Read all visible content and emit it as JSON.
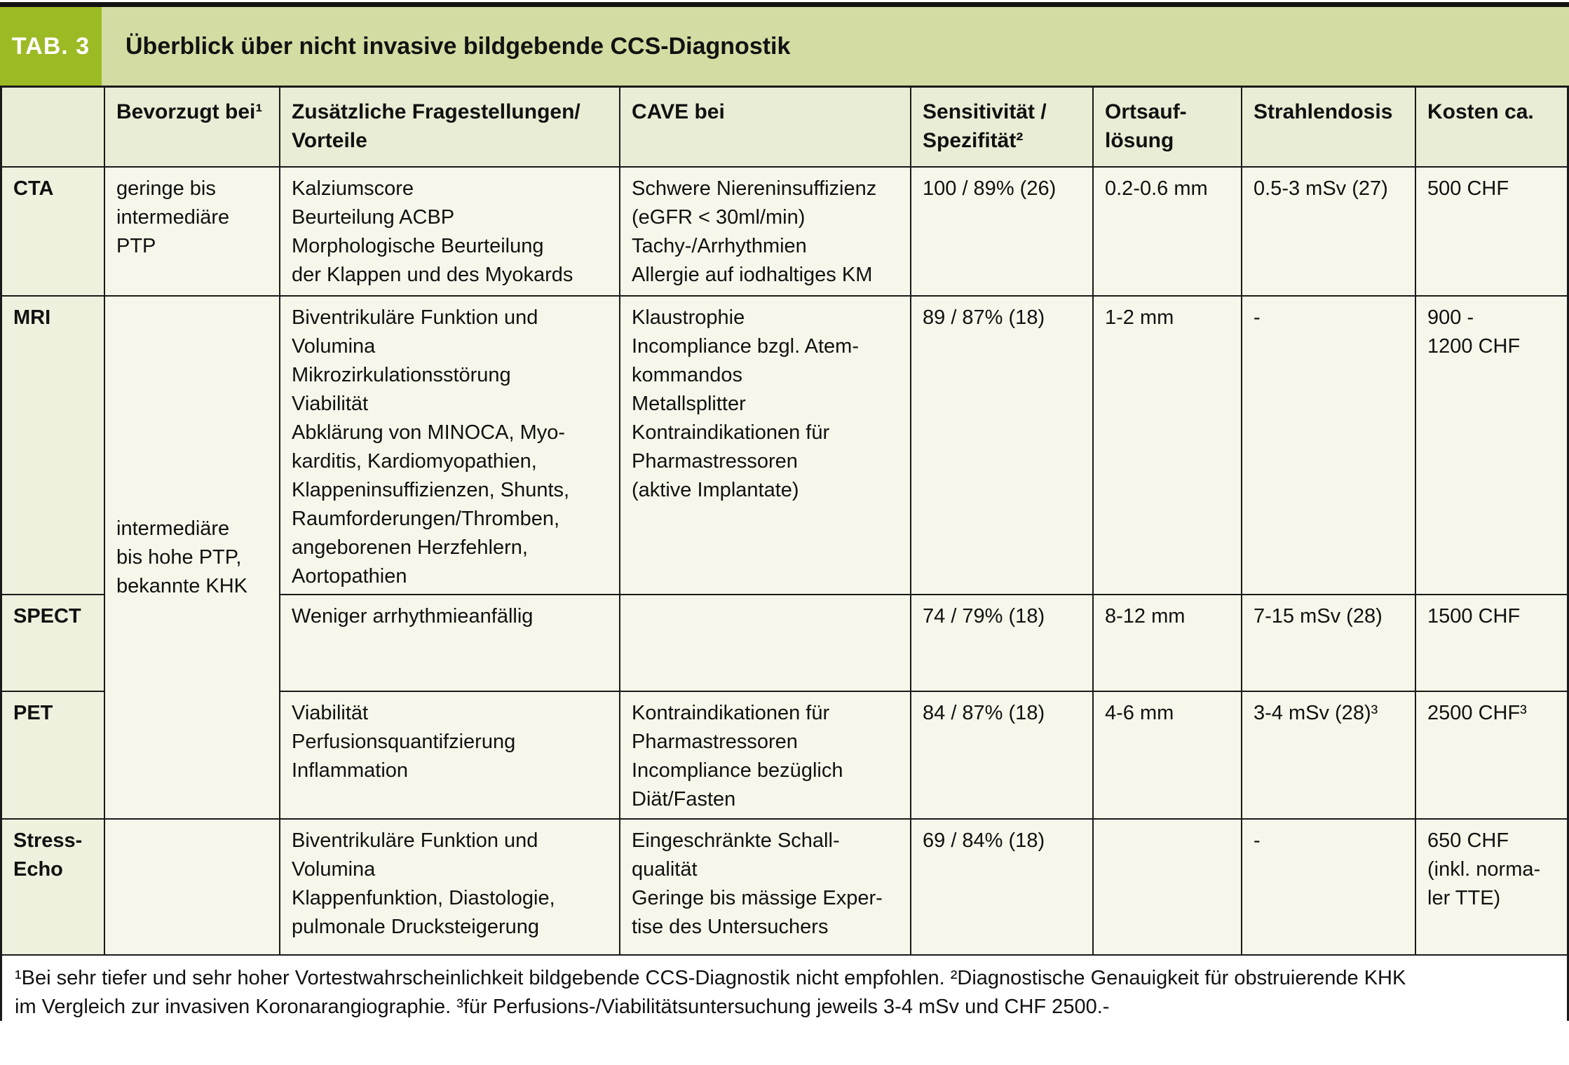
{
  "badge": "TAB. 3",
  "title": "Überblick über nicht invasive bildgebende CCS-Diagnostik",
  "headers": {
    "modality": "",
    "bevorzugt": "Bevorzugt bei¹",
    "zusatz": "Zusätzliche Fragestellungen/\nVorteile",
    "cave": "CAVE bei",
    "sens": "Sensitivität /\nSpezifität²",
    "orts": "Ortsauf-\nlösung",
    "dosis": "Strahlendosis",
    "kosten": "Kosten ca."
  },
  "merged_bevorzugt": "intermediäre\nbis hohe PTP,\nbekannte KHK",
  "rows": {
    "cta": {
      "label": "CTA",
      "bevorzugt": "geringe bis\nintermediäre\nPTP",
      "zusatz": "Kalziumscore\nBeurteilung ACBP\nMorphologische Beurteilung\nder Klappen und des Myokards",
      "cave": "Schwere Niereninsuffizienz\n(eGFR < 30ml/min)\nTachy-/Arrhythmien\nAllergie auf iodhaltiges KM",
      "sens": "100 / 89% (26)",
      "orts": "0.2-0.6 mm",
      "dosis": "0.5-3 mSv (27)",
      "kosten": "500 CHF"
    },
    "mri": {
      "label": "MRI",
      "zusatz": "Biventrikuläre Funktion und\nVolumina\nMikrozirkulationsstörung\nViabilität\nAbklärung von MINOCA, Myo-\nkarditis, Kardiomyopathien,\nKlappeninsuffizienzen, Shunts,\nRaumforderungen/Thromben,\nangeborenen Herzfehlern,\nAortopathien",
      "cave": "Klaustrophie\nIncompliance bzgl. Atem-\nkommandos\nMetallsplitter\nKontraindikationen für\nPharmastressoren\n(aktive Implantate)",
      "sens": "89 / 87% (18)",
      "orts": "1-2 mm",
      "dosis": "-",
      "kosten": "900 -\n1200 CHF"
    },
    "spect": {
      "label": "SPECT",
      "zusatz": "Weniger arrhythmieanfällig",
      "cave": "",
      "sens": "74 / 79% (18)",
      "orts": "8-12 mm",
      "dosis": "7-15 mSv (28)",
      "kosten": "1500 CHF"
    },
    "pet": {
      "label": "PET",
      "zusatz": "Viabilität\nPerfusionsquantifzierung\nInflammation",
      "cave": "Kontraindikationen für\nPharmastressoren\nIncompliance bezüglich\nDiät/Fasten",
      "sens": "84 / 87% (18)",
      "orts": "4-6 mm",
      "dosis": "3-4 mSv (28)³",
      "kosten": "2500 CHF³"
    },
    "stress_echo": {
      "label": "Stress-\nEcho",
      "bevorzugt": "",
      "zusatz": "Biventrikuläre Funktion und\nVolumina\nKlappenfunktion, Diastologie,\npulmonale Drucksteigerung",
      "cave": "Eingeschränkte Schall-\nqualität\nGeringe bis mässige Exper-\ntise des Untersuchers",
      "sens": "69 / 84% (18)",
      "orts": "",
      "dosis": "-",
      "kosten": "650 CHF\n(inkl. norma-\nler TTE)"
    }
  },
  "footnote": "¹Bei sehr tiefer und sehr hoher Vortestwahrscheinlichkeit bildgebende CCS-Diagnostik nicht empfohlen. ²Diagnostische Genauigkeit für obstruierende KHK\nim Vergleich zur invasiven Koronarangiographie. ³für Perfusions-/Viabilitätsuntersuchung jeweils 3-4 mSv und CHF 2500.-",
  "colors": {
    "badge_green": "#9cba24",
    "title_bar_green": "#d3dca3",
    "header_row_green": "#e9edd5",
    "label_col_green": "#eef1dd",
    "cell_cream": "#f6f7ea",
    "border_dark": "#1a1a1a"
  }
}
